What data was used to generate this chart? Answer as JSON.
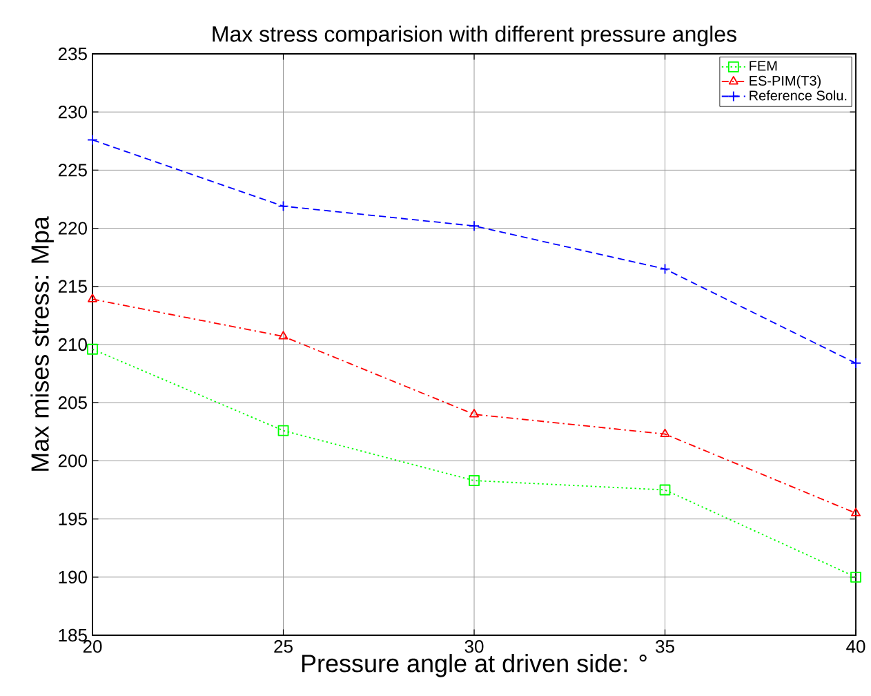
{
  "chart_data": {
    "type": "line",
    "title": "Max stress comparision with different pressure angles",
    "xlabel": "Pressure angle at driven side: °",
    "ylabel": "Max mises stress: Mpa",
    "x": [
      20,
      25,
      30,
      35,
      40
    ],
    "series": [
      {
        "name": "FEM",
        "color": "#00ff00",
        "marker": "square",
        "line_style": "dotted",
        "values": [
          209.6,
          202.6,
          198.3,
          197.5,
          190.0
        ]
      },
      {
        "name": "ES-PIM(T3)",
        "color": "#ff0000",
        "marker": "triangle",
        "line_style": "dashdot",
        "values": [
          213.9,
          210.7,
          204.0,
          202.3,
          195.5
        ]
      },
      {
        "name": "Reference Solu.",
        "color": "#0000ff",
        "marker": "cross",
        "line_style": "dashed",
        "values": [
          227.6,
          221.9,
          220.2,
          216.5,
          208.4
        ]
      }
    ],
    "xlim": [
      20,
      40
    ],
    "ylim": [
      185,
      235
    ],
    "xticks": [
      20,
      25,
      30,
      35,
      40
    ],
    "yticks": [
      185,
      190,
      195,
      200,
      205,
      210,
      215,
      220,
      225,
      230,
      235
    ],
    "grid": true,
    "legend": "top right"
  }
}
